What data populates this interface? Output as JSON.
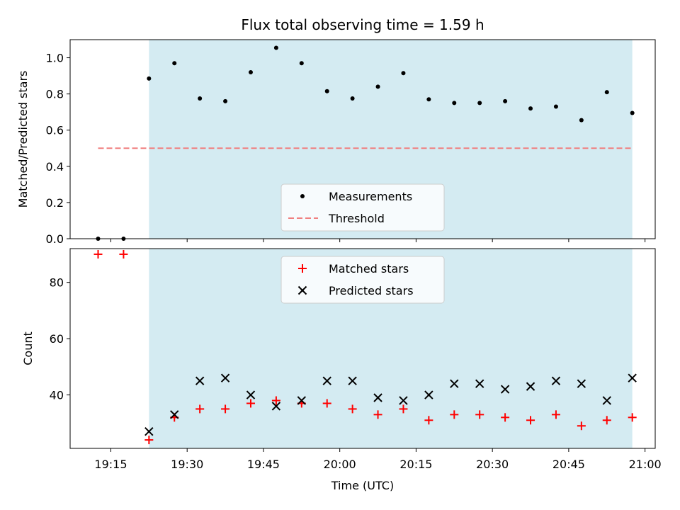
{
  "chart_data": [
    {
      "type": "scatter",
      "title": "Flux total observing time = 1.59 h",
      "ylabel": "Matched/Predicted stars",
      "xlabel": "",
      "xlim": [
        "19:07",
        "21:02"
      ],
      "ylim": [
        0,
        1.1
      ],
      "yticks": [
        "0.0",
        "0.2",
        "0.4",
        "0.6",
        "0.8",
        "1.0"
      ],
      "shaded_region": {
        "x_start": "19:22:30",
        "x_end": "20:57:30",
        "color": "#add8e6"
      },
      "legend_position": "lower-center",
      "legend": [
        "Measurements",
        "Threshold"
      ],
      "series": [
        {
          "name": "Measurements",
          "marker": "dot",
          "color": "#000000",
          "x": [
            "19:12:30",
            "19:17:30",
            "19:22:30",
            "19:27:30",
            "19:32:30",
            "19:37:30",
            "19:42:30",
            "19:47:30",
            "19:52:30",
            "19:57:30",
            "20:02:30",
            "20:07:30",
            "20:12:30",
            "20:17:30",
            "20:22:30",
            "20:27:30",
            "20:32:30",
            "20:37:30",
            "20:42:30",
            "20:47:30",
            "20:52:30",
            "20:57:30"
          ],
          "y": [
            0.0,
            0.0,
            0.885,
            0.97,
            0.775,
            0.76,
            0.92,
            1.055,
            0.97,
            0.815,
            0.775,
            0.84,
            0.915,
            0.77,
            0.75,
            0.75,
            0.76,
            0.72,
            0.73,
            0.655,
            0.81,
            0.695
          ]
        },
        {
          "name": "Threshold",
          "style": "dashed",
          "color": "#f08080",
          "x": [
            "19:12:30",
            "20:57:30"
          ],
          "y": [
            0.5,
            0.5
          ]
        }
      ]
    },
    {
      "type": "scatter",
      "title": "",
      "ylabel": "Count",
      "xlabel": "Time (UTC)",
      "xlim": [
        "19:07",
        "21:02"
      ],
      "ylim": [
        21,
        92
      ],
      "yticks": [
        "40",
        "60",
        "80"
      ],
      "xticks": [
        "19:15",
        "19:30",
        "19:45",
        "20:00",
        "20:15",
        "20:30",
        "20:45",
        "21:00"
      ],
      "shaded_region": {
        "x_start": "19:22:30",
        "x_end": "20:57:30",
        "color": "#add8e6"
      },
      "legend_position": "upper-center",
      "legend": [
        "Matched stars",
        "Predicted stars"
      ],
      "series": [
        {
          "name": "Matched stars",
          "marker": "plus",
          "color": "#ff0000",
          "x": [
            "19:12:30",
            "19:17:30",
            "19:22:30",
            "19:27:30",
            "19:32:30",
            "19:37:30",
            "19:42:30",
            "19:47:30",
            "19:52:30",
            "19:57:30",
            "20:02:30",
            "20:07:30",
            "20:12:30",
            "20:17:30",
            "20:22:30",
            "20:27:30",
            "20:32:30",
            "20:37:30",
            "20:42:30",
            "20:47:30",
            "20:52:30",
            "20:57:30"
          ],
          "y": [
            90,
            90,
            24,
            32,
            35,
            35,
            37,
            38,
            37,
            37,
            35,
            33,
            35,
            31,
            33,
            33,
            32,
            31,
            33,
            29,
            31,
            32
          ]
        },
        {
          "name": "Predicted stars",
          "marker": "x",
          "color": "#000000",
          "x": [
            "19:22:30",
            "19:27:30",
            "19:32:30",
            "19:37:30",
            "19:42:30",
            "19:47:30",
            "19:52:30",
            "19:57:30",
            "20:02:30",
            "20:07:30",
            "20:12:30",
            "20:17:30",
            "20:22:30",
            "20:27:30",
            "20:32:30",
            "20:37:30",
            "20:42:30",
            "20:47:30",
            "20:52:30",
            "20:57:30"
          ],
          "y": [
            27,
            33,
            45,
            46,
            40,
            36,
            38,
            45,
            45,
            39,
            38,
            40,
            44,
            44,
            42,
            43,
            45,
            44,
            38,
            46
          ]
        }
      ]
    }
  ]
}
